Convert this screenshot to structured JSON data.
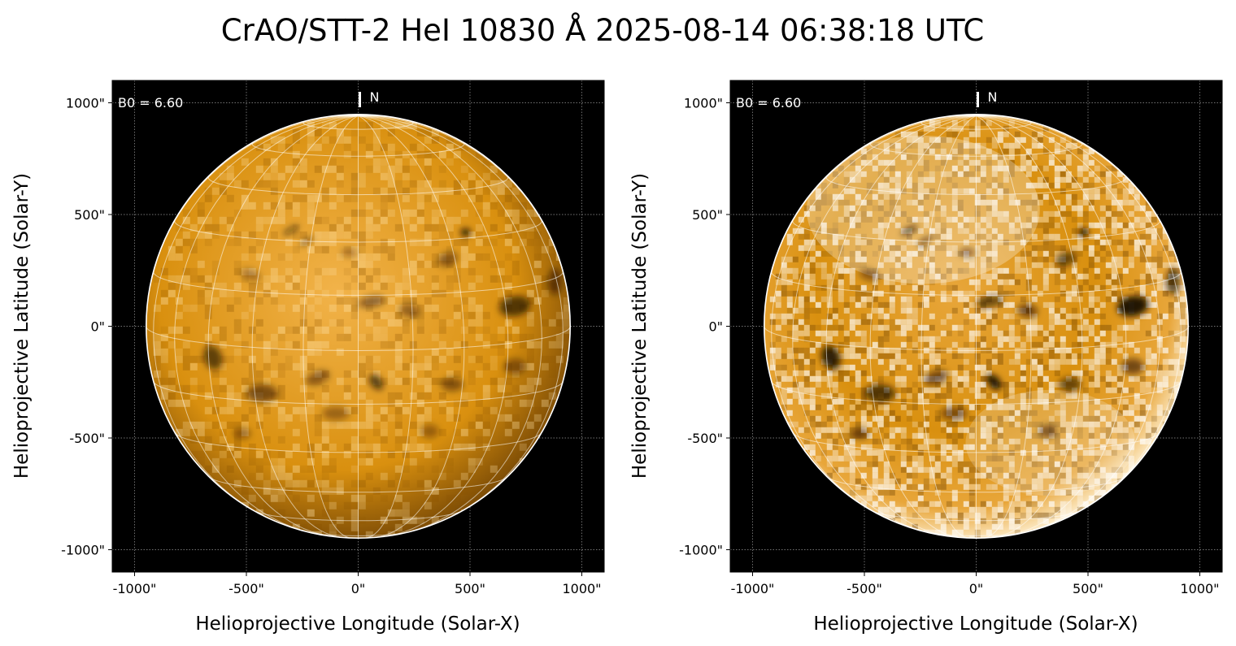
{
  "figure": {
    "title": "CrAO/STT-2 HeI 10830 Å 2025-08-14 06:38:18 UTC"
  },
  "panels": [
    {
      "id": "left",
      "name": "original",
      "b0_label": "B0 = 6.60",
      "north_label": "N",
      "xlabel": "Helioprojective Longitude (Solar-X)",
      "ylabel": "Helioprojective Latitude (Solar-Y)",
      "x_ticks": [
        "-1000\"",
        "-500\"",
        "0\"",
        "500\"",
        "1000\""
      ],
      "y_ticks": [
        "1000\"",
        "500\"",
        "0\"",
        "-500\"",
        "-1000\""
      ],
      "variant": "normal"
    },
    {
      "id": "right",
      "name": "enhanced",
      "b0_label": "B0 = 6.60",
      "north_label": "N",
      "xlabel": "Helioprojective Longitude (Solar-X)",
      "ylabel": "Helioprojective Latitude (Solar-Y)",
      "x_ticks": [
        "-1000\"",
        "-500\"",
        "0\"",
        "500\"",
        "1000\""
      ],
      "y_ticks": [
        "1000\"",
        "500\"",
        "0\"",
        "-500\"",
        "-1000\""
      ],
      "variant": "enhanced"
    }
  ],
  "axes": {
    "x_tick_values": [
      -1000,
      -500,
      0,
      500,
      1000
    ],
    "y_tick_values": [
      1000,
      500,
      0,
      -500,
      -1000
    ],
    "xlim": [
      -1100,
      1100
    ],
    "ylim": [
      -1100,
      1100
    ]
  },
  "sun": {
    "radius_arcsec": 948,
    "b0_degrees": 6.6,
    "grid_spacing_degrees": 15
  },
  "colors": {
    "sky": "#000000",
    "disk_light": "#f2b34a",
    "disk_mid": "#d9900f",
    "disk_dark": "#7a4a05",
    "enhanced_light": "#fff2d6",
    "enhanced_mid": "#e8a63a",
    "grid": "#ffffff",
    "limb": "#ffffff"
  },
  "features": [
    {
      "x": -300,
      "y": 430,
      "rx": 40,
      "ry": 12,
      "rot": 30,
      "strength": 0.55
    },
    {
      "x": -230,
      "y": 380,
      "rx": 35,
      "ry": 10,
      "rot": 35,
      "strength": 0.5
    },
    {
      "x": 480,
      "y": 420,
      "rx": 22,
      "ry": 18,
      "rot": 0,
      "strength": 0.9
    },
    {
      "x": 400,
      "y": 300,
      "rx": 45,
      "ry": 30,
      "rot": 20,
      "strength": 0.45
    },
    {
      "x": 700,
      "y": 90,
      "rx": 70,
      "ry": 45,
      "rot": 10,
      "strength": 0.7
    },
    {
      "x": 880,
      "y": 200,
      "rx": 30,
      "ry": 60,
      "rot": 0,
      "strength": 0.5
    },
    {
      "x": 60,
      "y": 110,
      "rx": 60,
      "ry": 25,
      "rot": 10,
      "strength": 0.45
    },
    {
      "x": 230,
      "y": 70,
      "rx": 45,
      "ry": 30,
      "rot": -10,
      "strength": 0.4
    },
    {
      "x": -650,
      "y": -140,
      "rx": 40,
      "ry": 55,
      "rot": 20,
      "strength": 0.65
    },
    {
      "x": -430,
      "y": -300,
      "rx": 70,
      "ry": 40,
      "rot": 0,
      "strength": 0.5
    },
    {
      "x": -180,
      "y": -230,
      "rx": 55,
      "ry": 30,
      "rot": 20,
      "strength": 0.4
    },
    {
      "x": 80,
      "y": -250,
      "rx": 25,
      "ry": 40,
      "rot": 40,
      "strength": 0.7
    },
    {
      "x": 420,
      "y": -260,
      "rx": 50,
      "ry": 30,
      "rot": 0,
      "strength": 0.45
    },
    {
      "x": 700,
      "y": -180,
      "rx": 50,
      "ry": 35,
      "rot": 0,
      "strength": 0.4
    },
    {
      "x": -100,
      "y": -390,
      "rx": 60,
      "ry": 30,
      "rot": 0,
      "strength": 0.35
    },
    {
      "x": -520,
      "y": -480,
      "rx": 40,
      "ry": 25,
      "rot": 0,
      "strength": 0.35
    },
    {
      "x": 320,
      "y": -470,
      "rx": 40,
      "ry": 30,
      "rot": 0,
      "strength": 0.35
    },
    {
      "x": -480,
      "y": 230,
      "rx": 45,
      "ry": 25,
      "rot": -20,
      "strength": 0.3
    },
    {
      "x": -40,
      "y": 330,
      "rx": 35,
      "ry": 20,
      "rot": 0,
      "strength": 0.3
    }
  ]
}
